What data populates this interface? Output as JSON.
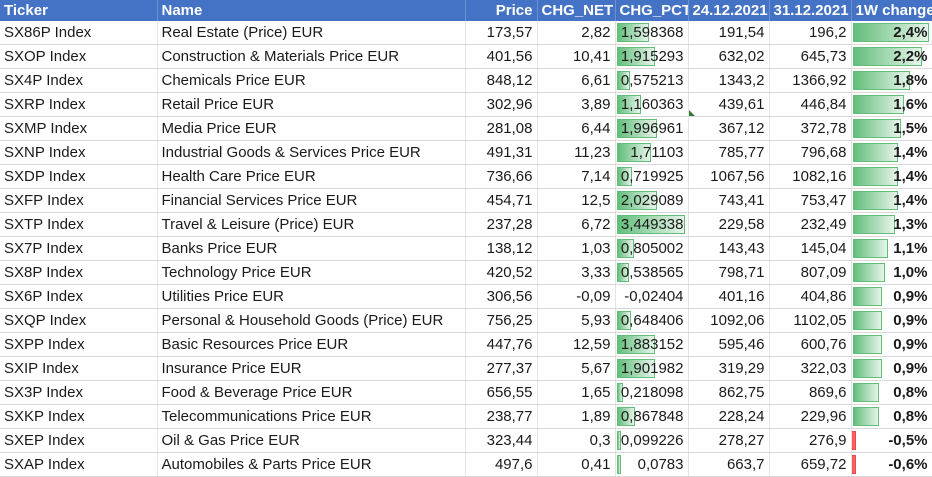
{
  "header": {
    "ticker": "Ticker",
    "name": "Name",
    "price": "Price",
    "chg_net": "CHG_NET",
    "chg_pct": "CHG_PCT",
    "date1": "24.12.2021",
    "date2": "31.12.2021",
    "week": "1W change"
  },
  "colors": {
    "header_bg": "#4472c4",
    "bar_positive": "#63be7b",
    "bar_negative": "#f8696b"
  },
  "rows": [
    {
      "ticker": "SX86P Index",
      "name": "Real Estate (Price) EUR",
      "price": "173,57",
      "chg_net": "2,82",
      "chg_pct": "1,598368",
      "d1": "191,54",
      "d2": "196,2",
      "wk": "2,4%",
      "pct_num": 1.598368,
      "wk_num": 2.4
    },
    {
      "ticker": "SXOP Index",
      "name": "Construction & Materials Price EUR",
      "price": "401,56",
      "chg_net": "10,41",
      "chg_pct": "1,915293",
      "d1": "632,02",
      "d2": "645,73",
      "wk": "2,2%",
      "pct_num": 1.915293,
      "wk_num": 2.2
    },
    {
      "ticker": "SX4P Index",
      "name": "Chemicals Price EUR",
      "price": "848,12",
      "chg_net": "6,61",
      "chg_pct": "0,575213",
      "d1": "1343,2",
      "d2": "1366,92",
      "wk": "1,8%",
      "pct_num": 0.575213,
      "wk_num": 1.8
    },
    {
      "ticker": "SXRP Index",
      "name": "Retail Price EUR",
      "price": "302,96",
      "chg_net": "3,89",
      "chg_pct": "1,160363",
      "d1": "439,61",
      "d2": "446,84",
      "wk": "1,6%",
      "pct_num": 1.160363,
      "wk_num": 1.6
    },
    {
      "ticker": "SXMP Index",
      "name": "Media Price EUR",
      "price": "281,08",
      "chg_net": "6,44",
      "chg_pct": "1,996961",
      "d1": "367,12",
      "d2": "372,78",
      "wk": "1,5%",
      "pct_num": 1.996961,
      "wk_num": 1.5
    },
    {
      "ticker": "SXNP Index",
      "name": "Industrial Goods & Services Price EUR",
      "price": "491,31",
      "chg_net": "11,23",
      "chg_pct": "1,71103",
      "d1": "785,77",
      "d2": "796,68",
      "wk": "1,4%",
      "pct_num": 1.71103,
      "wk_num": 1.4
    },
    {
      "ticker": "SXDP Index",
      "name": "Health Care Price EUR",
      "price": "736,66",
      "chg_net": "7,14",
      "chg_pct": "0,719925",
      "d1": "1067,56",
      "d2": "1082,16",
      "wk": "1,4%",
      "pct_num": 0.719925,
      "wk_num": 1.4
    },
    {
      "ticker": "SXFP Index",
      "name": "Financial Services Price EUR",
      "price": "454,71",
      "chg_net": "12,5",
      "chg_pct": "2,029089",
      "d1": "743,41",
      "d2": "753,47",
      "wk": "1,4%",
      "pct_num": 2.029089,
      "wk_num": 1.4
    },
    {
      "ticker": "SXTP Index",
      "name": "Travel & Leisure (Price) EUR",
      "price": "237,28",
      "chg_net": "6,72",
      "chg_pct": "3,449338",
      "d1": "229,58",
      "d2": "232,49",
      "wk": "1,3%",
      "pct_num": 3.449338,
      "wk_num": 1.3
    },
    {
      "ticker": "SX7P Index",
      "name": "Banks Price EUR",
      "price": "138,12",
      "chg_net": "1,03",
      "chg_pct": "0,805002",
      "d1": "143,43",
      "d2": "145,04",
      "wk": "1,1%",
      "pct_num": 0.805002,
      "wk_num": 1.1
    },
    {
      "ticker": "SX8P Index",
      "name": "Technology Price EUR",
      "price": "420,52",
      "chg_net": "3,33",
      "chg_pct": "0,538565",
      "d1": "798,71",
      "d2": "807,09",
      "wk": "1,0%",
      "pct_num": 0.538565,
      "wk_num": 1.0
    },
    {
      "ticker": "SX6P Index",
      "name": "Utilities Price EUR",
      "price": "306,56",
      "chg_net": "-0,09",
      "chg_pct": "-0,02404",
      "d1": "401,16",
      "d2": "404,86",
      "wk": "0,9%",
      "pct_num": -0.02404,
      "wk_num": 0.9
    },
    {
      "ticker": "SXQP Index",
      "name": "Personal & Household Goods (Price) EUR",
      "price": "756,25",
      "chg_net": "5,93",
      "chg_pct": "0,648406",
      "d1": "1092,06",
      "d2": "1102,05",
      "wk": "0,9%",
      "pct_num": 0.648406,
      "wk_num": 0.9
    },
    {
      "ticker": "SXPP Index",
      "name": "Basic Resources Price EUR",
      "price": "447,76",
      "chg_net": "12,59",
      "chg_pct": "1,883152",
      "d1": "595,46",
      "d2": "600,76",
      "wk": "0,9%",
      "pct_num": 1.883152,
      "wk_num": 0.9
    },
    {
      "ticker": "SXIP Index",
      "name": "Insurance Price EUR",
      "price": "277,37",
      "chg_net": "5,67",
      "chg_pct": "1,901982",
      "d1": "319,29",
      "d2": "322,03",
      "wk": "0,9%",
      "pct_num": 1.901982,
      "wk_num": 0.9
    },
    {
      "ticker": "SX3P Index",
      "name": "Food & Beverage Price EUR",
      "price": "656,55",
      "chg_net": "1,65",
      "chg_pct": "0,218098",
      "d1": "862,75",
      "d2": "869,6",
      "wk": "0,8%",
      "pct_num": 0.218098,
      "wk_num": 0.8
    },
    {
      "ticker": "SXKP Index",
      "name": "Telecommunications Price EUR",
      "price": "238,77",
      "chg_net": "1,89",
      "chg_pct": "0,867848",
      "d1": "228,24",
      "d2": "229,96",
      "wk": "0,8%",
      "pct_num": 0.867848,
      "wk_num": 0.8
    },
    {
      "ticker": "SXEP Index",
      "name": "Oil & Gas Price EUR",
      "price": "323,44",
      "chg_net": "0,3",
      "chg_pct": "0,099226",
      "d1": "278,27",
      "d2": "276,9",
      "wk": "-0,5%",
      "pct_num": 0.099226,
      "wk_num": -0.5
    },
    {
      "ticker": "SXAP Index",
      "name": "Automobiles & Parts Price EUR",
      "price": "497,6",
      "chg_net": "0,41",
      "chg_pct": "0,0783",
      "d1": "663,7",
      "d2": "659,72",
      "wk": "-0,6%",
      "pct_num": 0.0783,
      "wk_num": -0.6
    }
  ]
}
